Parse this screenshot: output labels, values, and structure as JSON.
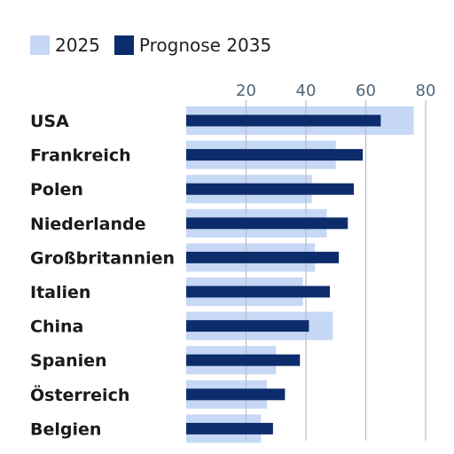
{
  "chart_data": {
    "type": "bar",
    "orientation": "horizontal",
    "categories": [
      "USA",
      "Frankreich",
      "Polen",
      "Niederlande",
      "Großbritannien",
      "Italien",
      "China",
      "Spanien",
      "Österreich",
      "Belgien"
    ],
    "series": [
      {
        "name": "2025",
        "color": "#c6d8f5",
        "values": [
          76,
          50,
          42,
          47,
          43,
          39,
          49,
          30,
          27,
          25
        ]
      },
      {
        "name": "Prognose 2035",
        "color": "#0d2c6b",
        "values": [
          65,
          59,
          56,
          54,
          51,
          48,
          41,
          38,
          33,
          29
        ]
      }
    ],
    "xticks": [
      20,
      40,
      60,
      80
    ],
    "xlim": [
      0,
      80
    ],
    "grid": true,
    "legend_position": "top-left",
    "grid_color": "#b8bec7"
  }
}
